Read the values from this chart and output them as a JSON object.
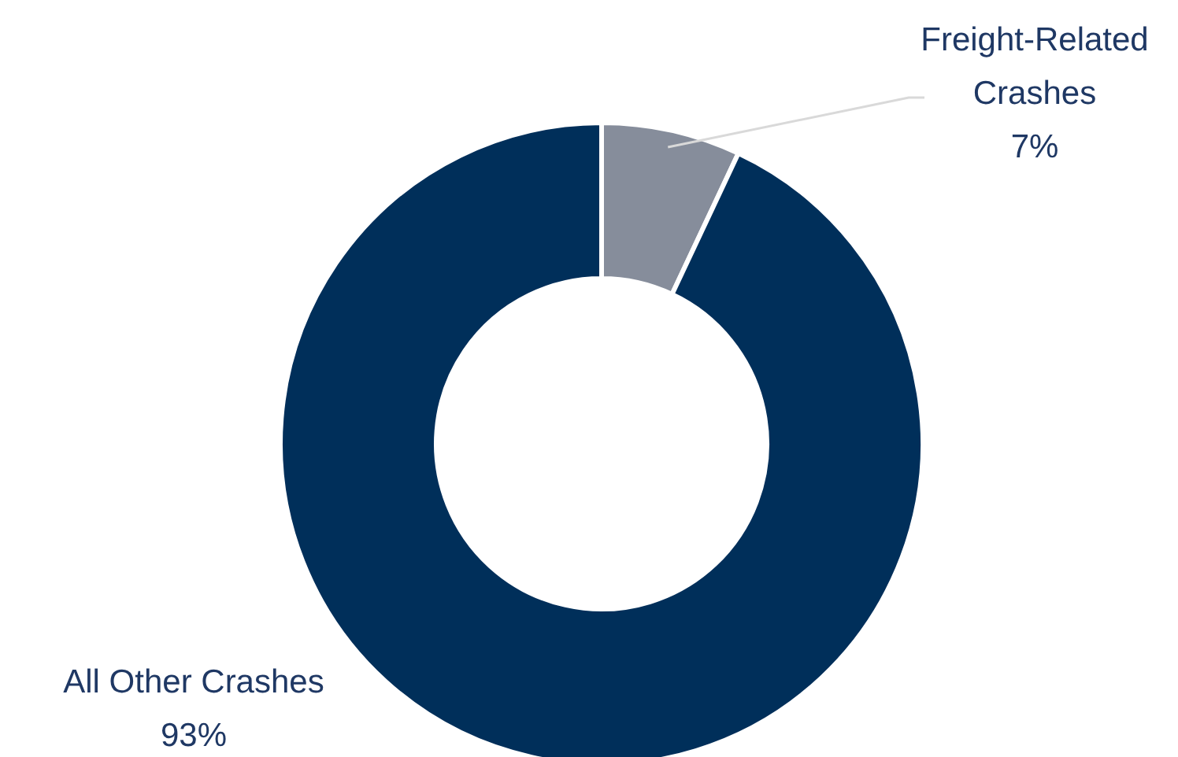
{
  "chart_data": {
    "type": "donut",
    "categories": [
      "Freight-Related Crashes",
      "All Other Crashes"
    ],
    "values": [
      7,
      93
    ],
    "colors": [
      "#868d9b",
      "#002f5a"
    ],
    "value_labels": [
      "7%",
      "93%"
    ]
  }
}
